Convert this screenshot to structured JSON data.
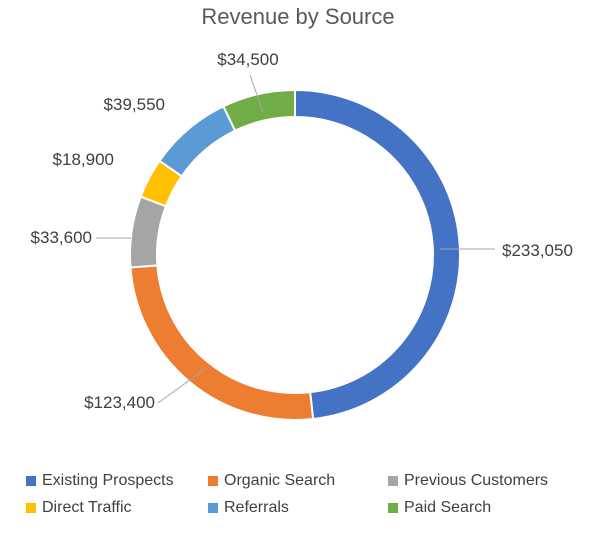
{
  "chart_data": {
    "type": "pie",
    "subtype": "doughnut",
    "title": "Revenue by Source",
    "categories": [
      "Existing Prospects",
      "Organic Search",
      "Previous Customers",
      "Direct Traffic",
      "Referrals",
      "Paid Search"
    ],
    "values": [
      233050,
      123400,
      33600,
      18900,
      39550,
      34500
    ],
    "data_labels": [
      "$233,050",
      "$123,400",
      "$33,600",
      "$18,900",
      "$39,550",
      "$34,500"
    ],
    "colors": [
      "#4472C4",
      "#ED7D31",
      "#A5A5A5",
      "#FFC000",
      "#5B9BD5",
      "#70AD47"
    ],
    "legend_position": "bottom"
  }
}
